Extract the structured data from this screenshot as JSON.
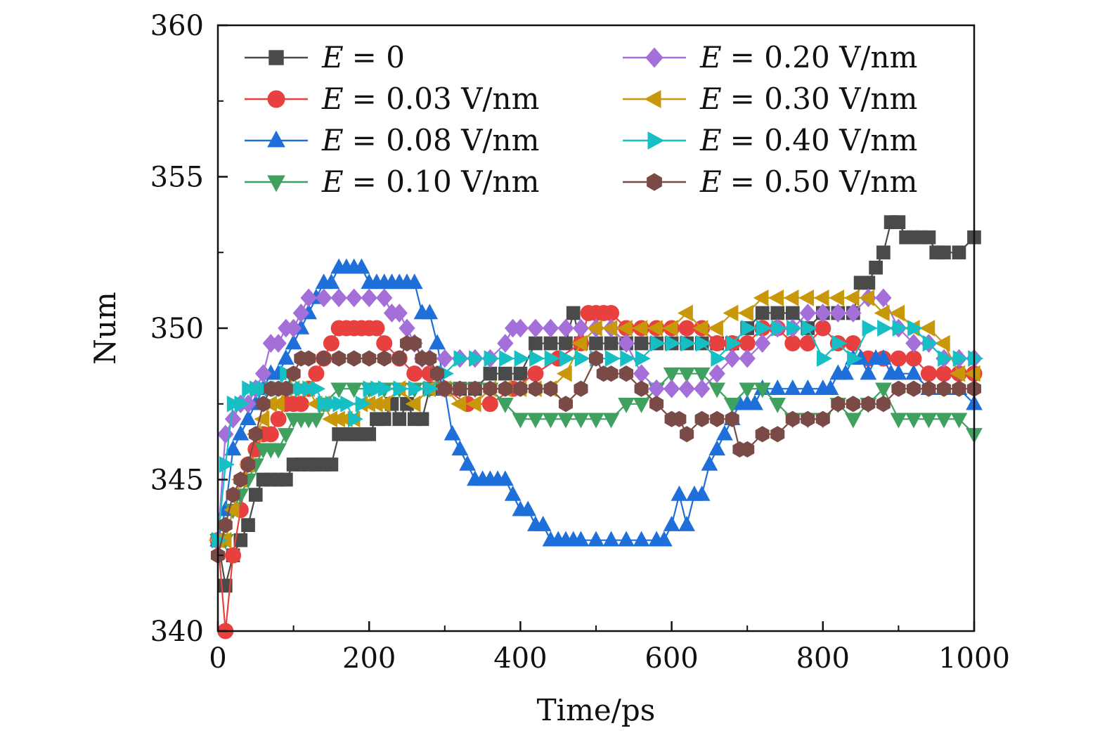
{
  "chart_data": {
    "type": "line",
    "xlabel": "Time/ps",
    "ylabel": "Num",
    "xlim": [
      0,
      1000
    ],
    "ylim": [
      340,
      360
    ],
    "xticks": [
      "0",
      "200",
      "400",
      "600",
      "800",
      "1000"
    ],
    "yticks": [
      "340",
      "345",
      "350",
      "355",
      "360"
    ],
    "legend_position": "top",
    "series": [
      {
        "name": "E = 0",
        "legend_var": "E",
        "legend_value": "= 0",
        "color": "#4a4a4a",
        "marker": "square",
        "x": [
          0,
          10,
          20,
          30,
          40,
          50,
          60,
          70,
          80,
          90,
          100,
          110,
          120,
          130,
          140,
          150,
          160,
          170,
          180,
          190,
          200,
          210,
          220,
          230,
          240,
          250,
          260,
          270,
          280,
          290,
          300,
          320,
          340,
          360,
          380,
          400,
          420,
          440,
          460,
          470,
          480,
          500,
          520,
          540,
          560,
          580,
          600,
          620,
          640,
          660,
          680,
          700,
          720,
          740,
          760,
          780,
          800,
          820,
          840,
          850,
          860,
          870,
          880,
          890,
          900,
          910,
          920,
          930,
          940,
          950,
          960,
          980,
          1000
        ],
        "y": [
          343,
          341.5,
          342.5,
          343,
          343.5,
          344.5,
          345,
          345,
          345,
          345,
          345.5,
          345.5,
          345.5,
          345.5,
          345.5,
          345.5,
          346.5,
          346.5,
          346.5,
          346.5,
          346.5,
          347,
          347,
          347.5,
          347,
          347.5,
          347,
          347,
          348,
          348,
          348,
          348,
          348,
          348.5,
          348.5,
          348.5,
          349.5,
          349.5,
          349.5,
          350.5,
          349.5,
          349.5,
          349.5,
          349.5,
          349.5,
          349.5,
          349.5,
          349.5,
          349.5,
          349.5,
          349.5,
          350,
          350.5,
          350.5,
          350.5,
          350,
          350.5,
          350.5,
          350.5,
          351.5,
          351.5,
          352,
          352.5,
          353.5,
          353.5,
          353,
          353,
          353,
          353,
          352.5,
          352.5,
          352.5,
          353
        ]
      },
      {
        "name": "E = 0.03 V/nm",
        "legend_var": "E",
        "legend_value": "= 0.03 V/nm",
        "color": "#e8403f",
        "marker": "circle",
        "x": [
          0,
          10,
          20,
          30,
          40,
          50,
          60,
          70,
          80,
          90,
          100,
          110,
          120,
          130,
          140,
          150,
          160,
          170,
          180,
          190,
          200,
          210,
          220,
          240,
          260,
          280,
          300,
          330,
          360,
          390,
          420,
          450,
          480,
          490,
          500,
          510,
          520,
          540,
          560,
          580,
          600,
          620,
          640,
          660,
          680,
          700,
          720,
          740,
          760,
          780,
          800,
          820,
          840,
          860,
          880,
          900,
          920,
          940,
          960,
          980,
          1000
        ],
        "y": [
          343,
          340,
          342.5,
          344,
          345.5,
          346,
          346.5,
          346.5,
          347,
          347.5,
          347.5,
          347.5,
          348,
          348.5,
          349,
          349.5,
          350,
          350,
          350,
          350,
          350,
          350,
          349.5,
          349,
          348.5,
          348.5,
          348,
          347.5,
          347.5,
          348,
          348.5,
          349,
          349.5,
          350.5,
          350.5,
          350.5,
          350.5,
          350,
          350,
          350,
          350,
          350,
          350,
          349.5,
          349.5,
          349.5,
          350,
          350,
          349.5,
          349.5,
          350,
          349.5,
          349.5,
          349,
          349,
          349,
          349,
          348.5,
          348.5,
          348.5,
          348.5
        ]
      },
      {
        "name": "E = 0.08 V/nm",
        "legend_var": "E",
        "legend_value": "= 0.08 V/nm",
        "color": "#1e6fd9",
        "marker": "triangle-up",
        "x": [
          0,
          10,
          20,
          30,
          40,
          50,
          60,
          70,
          80,
          90,
          100,
          110,
          120,
          130,
          140,
          150,
          160,
          170,
          180,
          190,
          200,
          210,
          220,
          230,
          240,
          250,
          260,
          270,
          280,
          290,
          300,
          310,
          320,
          330,
          340,
          350,
          360,
          370,
          380,
          390,
          400,
          410,
          420,
          430,
          440,
          450,
          460,
          470,
          480,
          500,
          520,
          540,
          560,
          580,
          590,
          600,
          610,
          620,
          630,
          640,
          650,
          660,
          670,
          680,
          690,
          700,
          710,
          720,
          740,
          760,
          780,
          800,
          810,
          820,
          830,
          840,
          850,
          860,
          870,
          880,
          890,
          900,
          920,
          940,
          960,
          980,
          1000
        ],
        "y": [
          343,
          344,
          346,
          346.5,
          347,
          347.5,
          348,
          348.5,
          348.5,
          349,
          349.5,
          350,
          350.5,
          351,
          351.5,
          351.5,
          352,
          352,
          352,
          352,
          351.5,
          351.5,
          351.5,
          351.5,
          351.5,
          351.5,
          351.5,
          350.5,
          350.5,
          349.5,
          348,
          346.5,
          346,
          345.5,
          345,
          345,
          345,
          345,
          345,
          344.5,
          344,
          344,
          343.5,
          343.5,
          343,
          343,
          343,
          343,
          343,
          343,
          343,
          343,
          343,
          343,
          343,
          343.5,
          344.5,
          343.5,
          344.5,
          344.5,
          345.5,
          346,
          346.5,
          347,
          347.5,
          347.5,
          347.5,
          348,
          348,
          348,
          348,
          348,
          348,
          348.5,
          348.5,
          349,
          349,
          348.5,
          349,
          349,
          348.5,
          348.5,
          348.5,
          348,
          348,
          348,
          347.5
        ]
      },
      {
        "name": "E = 0.10 V/nm",
        "legend_var": "E",
        "legend_value": "= 0.10 V/nm",
        "color": "#3fa060",
        "marker": "triangle-down",
        "x": [
          0,
          10,
          20,
          30,
          40,
          50,
          60,
          70,
          80,
          90,
          100,
          110,
          120,
          130,
          140,
          160,
          180,
          200,
          220,
          240,
          260,
          280,
          300,
          320,
          340,
          360,
          380,
          400,
          420,
          440,
          460,
          480,
          500,
          520,
          540,
          560,
          580,
          600,
          620,
          640,
          660,
          680,
          700,
          720,
          740,
          760,
          780,
          800,
          820,
          840,
          860,
          880,
          900,
          920,
          940,
          960,
          980,
          1000
        ],
        "y": [
          343,
          343,
          344,
          344.5,
          345,
          345.5,
          346,
          346,
          346,
          346.5,
          347,
          347,
          347,
          347,
          347.5,
          348,
          348,
          348,
          348,
          348,
          348,
          348,
          348,
          348,
          348,
          348,
          347.5,
          347,
          347,
          347,
          347,
          347,
          347,
          347,
          347.5,
          347.5,
          348,
          348.5,
          348.5,
          348.5,
          348,
          347.5,
          348,
          348,
          347.5,
          347,
          347,
          347,
          347.5,
          347,
          347.5,
          348,
          347,
          347,
          347,
          347,
          347,
          346.5
        ]
      },
      {
        "name": "E = 0.20 V/nm",
        "legend_var": "E",
        "legend_value": "= 0.20 V/nm",
        "color": "#a56fd9",
        "marker": "diamond",
        "x": [
          0,
          10,
          20,
          30,
          40,
          50,
          60,
          70,
          80,
          90,
          100,
          110,
          120,
          140,
          160,
          180,
          200,
          220,
          230,
          240,
          250,
          260,
          270,
          280,
          300,
          320,
          340,
          360,
          380,
          390,
          400,
          420,
          440,
          460,
          480,
          500,
          520,
          540,
          560,
          580,
          600,
          620,
          640,
          660,
          680,
          700,
          720,
          740,
          760,
          780,
          800,
          820,
          840,
          860,
          880,
          900,
          920,
          940,
          960,
          980,
          1000
        ],
        "y": [
          343,
          346.5,
          347,
          347.5,
          347.5,
          348,
          348.5,
          349.5,
          349.5,
          350,
          350,
          350.5,
          351,
          351,
          351,
          351,
          351,
          351,
          350.5,
          350.5,
          350,
          349.5,
          349,
          349,
          349,
          349,
          349,
          349,
          349.5,
          350,
          350,
          350,
          350,
          350,
          350,
          350,
          350,
          349.5,
          348.5,
          348,
          348,
          348,
          348,
          348.5,
          349,
          349,
          349.5,
          350,
          350,
          350.5,
          350.5,
          350.5,
          350.5,
          351,
          351,
          350,
          349.5,
          349.5,
          349,
          349,
          349
        ]
      },
      {
        "name": "E = 0.30 V/nm",
        "legend_var": "E",
        "legend_value": "= 0.30 V/nm",
        "color": "#c9980a",
        "marker": "triangle-left",
        "x": [
          0,
          10,
          20,
          30,
          40,
          50,
          60,
          70,
          80,
          90,
          100,
          110,
          120,
          130,
          140,
          150,
          160,
          170,
          180,
          190,
          200,
          210,
          220,
          240,
          260,
          280,
          300,
          320,
          340,
          360,
          380,
          400,
          420,
          440,
          460,
          480,
          500,
          520,
          540,
          560,
          580,
          600,
          620,
          640,
          660,
          680,
          700,
          720,
          740,
          760,
          780,
          800,
          820,
          840,
          860,
          880,
          900,
          920,
          940,
          960,
          980,
          1000
        ],
        "y": [
          343,
          343,
          344,
          345,
          345.5,
          346.5,
          347,
          347.5,
          347.5,
          348,
          348,
          348,
          348,
          347.5,
          347.5,
          347,
          347,
          347,
          347,
          347.5,
          347.5,
          347.5,
          347.5,
          348,
          347.5,
          348,
          348,
          347.5,
          347.5,
          348,
          348,
          348,
          348,
          348,
          348.5,
          349.5,
          350,
          350,
          350,
          350,
          350,
          350,
          350.5,
          350,
          350,
          350.5,
          350.5,
          351,
          351,
          351,
          351,
          351,
          351,
          351,
          351,
          350.5,
          350.5,
          350,
          350,
          349.5,
          348.5,
          348.5
        ]
      },
      {
        "name": "E = 0.40 V/nm",
        "legend_var": "E",
        "legend_value": "= 0.40 V/nm",
        "color": "#16bfc4",
        "marker": "triangle-right",
        "x": [
          0,
          10,
          20,
          30,
          40,
          50,
          60,
          70,
          80,
          90,
          100,
          110,
          120,
          130,
          140,
          150,
          160,
          170,
          180,
          190,
          200,
          210,
          220,
          240,
          260,
          280,
          300,
          320,
          340,
          360,
          380,
          400,
          420,
          440,
          460,
          480,
          500,
          520,
          540,
          560,
          580,
          600,
          620,
          640,
          660,
          680,
          700,
          720,
          740,
          760,
          780,
          800,
          820,
          840,
          860,
          880,
          900,
          920,
          940,
          960,
          980,
          1000
        ],
        "y": [
          343,
          345.5,
          347.5,
          347.5,
          348,
          348,
          348,
          348,
          348,
          348.5,
          348,
          348,
          348,
          348,
          347.5,
          347.5,
          347.5,
          347.5,
          347,
          347.5,
          348,
          348,
          348,
          348,
          348,
          348,
          348.5,
          349,
          349,
          349,
          349,
          349,
          349,
          349,
          349,
          349,
          349,
          349,
          349,
          349,
          349.5,
          349.5,
          349.5,
          349.5,
          349,
          349.5,
          350,
          350,
          350,
          350,
          350,
          349,
          349.5,
          349,
          350,
          350,
          350,
          350,
          349.5,
          349,
          349,
          349
        ]
      },
      {
        "name": "E = 0.50 V/nm",
        "legend_var": "E",
        "legend_value": "= 0.50 V/nm",
        "color": "#7a4a47",
        "marker": "hexagon",
        "x": [
          0,
          10,
          20,
          30,
          40,
          50,
          60,
          70,
          80,
          90,
          100,
          110,
          120,
          140,
          160,
          180,
          200,
          220,
          240,
          250,
          260,
          270,
          280,
          290,
          300,
          320,
          340,
          360,
          380,
          400,
          420,
          440,
          460,
          480,
          500,
          510,
          520,
          540,
          560,
          580,
          600,
          610,
          620,
          640,
          660,
          680,
          690,
          700,
          720,
          740,
          760,
          780,
          800,
          820,
          840,
          860,
          880,
          900,
          920,
          940,
          960,
          980,
          1000
        ],
        "y": [
          342.5,
          343.5,
          344.5,
          345,
          345.5,
          346.5,
          347.5,
          348,
          348,
          348,
          348.5,
          349,
          349,
          349,
          349,
          349,
          349,
          349,
          349,
          349.5,
          349.5,
          349,
          349,
          348.5,
          348,
          348,
          348,
          348,
          348,
          348,
          348,
          348,
          347.5,
          348,
          349,
          348.5,
          348.5,
          348.5,
          348,
          347.5,
          347,
          347,
          346.5,
          347,
          347,
          347,
          346,
          346,
          346.5,
          346.5,
          347,
          347,
          347,
          347.5,
          347.5,
          347.5,
          347.5,
          348,
          348,
          348,
          348,
          348,
          348
        ]
      }
    ]
  }
}
